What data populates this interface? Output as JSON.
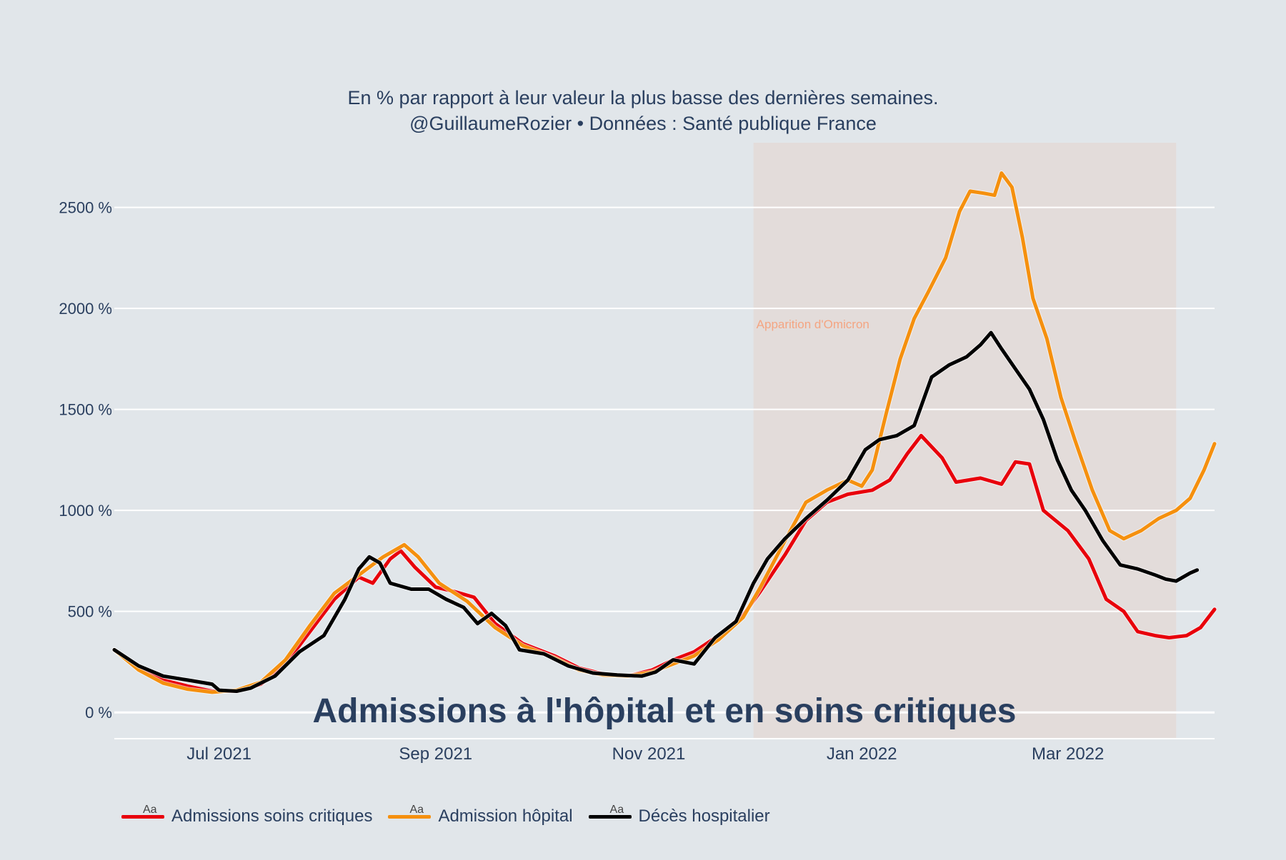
{
  "subtitle_line1": "En % par rapport à leur valeur la plus basse des dernières semaines.",
  "subtitle_line2": "@GuillaumeRozier • Données : Santé publique France",
  "chart_data": {
    "type": "line",
    "title": "Admissions à l'hôpital et en soins critiques",
    "xlabel": "",
    "ylabel": "",
    "x_range": [
      "2021-06-01",
      "2022-04-12"
    ],
    "ylim": [
      -130,
      2820
    ],
    "y_ticks": [
      0,
      500,
      1000,
      1500,
      2000,
      2500
    ],
    "y_tick_labels": [
      "0 %",
      "500 %",
      "1000 %",
      "1500 %",
      "2000 %",
      "2500 %"
    ],
    "x_ticks": [
      "2021-07-01",
      "2021-09-01",
      "2021-11-01",
      "2022-01-01",
      "2022-03-01"
    ],
    "x_tick_labels": [
      "Jul 2021",
      "Sep 2021",
      "Nov 2021",
      "Jan 2022",
      "Mar 2022"
    ],
    "grid": true,
    "legend_position": "bottom-left",
    "shaded_region": {
      "x0": "2021-12-01",
      "x1": "2022-04-01",
      "label": "Apparition d'Omicron",
      "color": "#f4a582",
      "label_color": "#f4a582"
    },
    "series": [
      {
        "name": "Admissions soins critiques",
        "color": "#e8000b",
        "points": [
          [
            "2021-06-01",
            310
          ],
          [
            "2021-06-08",
            220
          ],
          [
            "2021-06-15",
            160
          ],
          [
            "2021-06-22",
            130
          ],
          [
            "2021-06-29",
            105
          ],
          [
            "2021-07-06",
            105
          ],
          [
            "2021-07-13",
            140
          ],
          [
            "2021-07-20",
            240
          ],
          [
            "2021-07-27",
            400
          ],
          [
            "2021-08-03",
            560
          ],
          [
            "2021-08-10",
            670
          ],
          [
            "2021-08-14",
            640
          ],
          [
            "2021-08-19",
            760
          ],
          [
            "2021-08-22",
            800
          ],
          [
            "2021-08-26",
            720
          ],
          [
            "2021-09-01",
            620
          ],
          [
            "2021-09-06",
            600
          ],
          [
            "2021-09-12",
            570
          ],
          [
            "2021-09-18",
            440
          ],
          [
            "2021-09-26",
            340
          ],
          [
            "2021-10-05",
            280
          ],
          [
            "2021-10-12",
            220
          ],
          [
            "2021-10-19",
            190
          ],
          [
            "2021-10-26",
            180
          ],
          [
            "2021-11-02",
            210
          ],
          [
            "2021-11-08",
            260
          ],
          [
            "2021-11-14",
            300
          ],
          [
            "2021-11-21",
            380
          ],
          [
            "2021-11-28",
            480
          ],
          [
            "2021-12-03",
            600
          ],
          [
            "2021-12-10",
            780
          ],
          [
            "2021-12-16",
            950
          ],
          [
            "2021-12-22",
            1040
          ],
          [
            "2021-12-28",
            1080
          ],
          [
            "2022-01-04",
            1100
          ],
          [
            "2022-01-09",
            1150
          ],
          [
            "2022-01-14",
            1280
          ],
          [
            "2022-01-18",
            1370
          ],
          [
            "2022-01-24",
            1260
          ],
          [
            "2022-01-28",
            1140
          ],
          [
            "2022-02-04",
            1160
          ],
          [
            "2022-02-10",
            1130
          ],
          [
            "2022-02-14",
            1240
          ],
          [
            "2022-02-18",
            1230
          ],
          [
            "2022-02-22",
            1000
          ],
          [
            "2022-03-01",
            900
          ],
          [
            "2022-03-07",
            760
          ],
          [
            "2022-03-12",
            560
          ],
          [
            "2022-03-17",
            500
          ],
          [
            "2022-03-21",
            400
          ],
          [
            "2022-03-26",
            380
          ],
          [
            "2022-03-30",
            370
          ],
          [
            "2022-04-04",
            380
          ],
          [
            "2022-04-08",
            420
          ],
          [
            "2022-04-12",
            510
          ]
        ]
      },
      {
        "name": "Admission hôpital",
        "color": "#f5900e",
        "points": [
          [
            "2021-06-01",
            310
          ],
          [
            "2021-06-08",
            210
          ],
          [
            "2021-06-15",
            145
          ],
          [
            "2021-06-22",
            115
          ],
          [
            "2021-06-29",
            100
          ],
          [
            "2021-07-06",
            110
          ],
          [
            "2021-07-13",
            150
          ],
          [
            "2021-07-20",
            260
          ],
          [
            "2021-07-27",
            430
          ],
          [
            "2021-08-03",
            590
          ],
          [
            "2021-08-10",
            680
          ],
          [
            "2021-08-17",
            770
          ],
          [
            "2021-08-23",
            830
          ],
          [
            "2021-08-27",
            770
          ],
          [
            "2021-09-02",
            640
          ],
          [
            "2021-09-10",
            550
          ],
          [
            "2021-09-18",
            420
          ],
          [
            "2021-09-26",
            330
          ],
          [
            "2021-10-05",
            270
          ],
          [
            "2021-10-12",
            210
          ],
          [
            "2021-10-19",
            185
          ],
          [
            "2021-10-26",
            180
          ],
          [
            "2021-11-02",
            200
          ],
          [
            "2021-11-08",
            240
          ],
          [
            "2021-11-14",
            280
          ],
          [
            "2021-11-21",
            360
          ],
          [
            "2021-11-28",
            470
          ],
          [
            "2021-12-03",
            620
          ],
          [
            "2021-12-10",
            850
          ],
          [
            "2021-12-16",
            1040
          ],
          [
            "2021-12-22",
            1100
          ],
          [
            "2021-12-28",
            1150
          ],
          [
            "2022-01-01",
            1120
          ],
          [
            "2022-01-04",
            1200
          ],
          [
            "2022-01-08",
            1480
          ],
          [
            "2022-01-12",
            1750
          ],
          [
            "2022-01-16",
            1950
          ],
          [
            "2022-01-20",
            2080
          ],
          [
            "2022-01-25",
            2250
          ],
          [
            "2022-01-29",
            2480
          ],
          [
            "2022-02-01",
            2580
          ],
          [
            "2022-02-05",
            2570
          ],
          [
            "2022-02-08",
            2560
          ],
          [
            "2022-02-10",
            2670
          ],
          [
            "2022-02-13",
            2600
          ],
          [
            "2022-02-16",
            2350
          ],
          [
            "2022-02-19",
            2050
          ],
          [
            "2022-02-23",
            1850
          ],
          [
            "2022-02-27",
            1560
          ],
          [
            "2022-03-03",
            1350
          ],
          [
            "2022-03-08",
            1100
          ],
          [
            "2022-03-13",
            900
          ],
          [
            "2022-03-17",
            860
          ],
          [
            "2022-03-22",
            900
          ],
          [
            "2022-03-27",
            960
          ],
          [
            "2022-04-01",
            1000
          ],
          [
            "2022-04-05",
            1060
          ],
          [
            "2022-04-09",
            1200
          ],
          [
            "2022-04-12",
            1330
          ]
        ]
      },
      {
        "name": "Décès hospitalier",
        "color": "#000000",
        "points": [
          [
            "2021-06-01",
            310
          ],
          [
            "2021-06-08",
            230
          ],
          [
            "2021-06-15",
            180
          ],
          [
            "2021-06-22",
            160
          ],
          [
            "2021-06-29",
            140
          ],
          [
            "2021-07-01",
            110
          ],
          [
            "2021-07-06",
            105
          ],
          [
            "2021-07-10",
            120
          ],
          [
            "2021-07-17",
            180
          ],
          [
            "2021-07-24",
            300
          ],
          [
            "2021-07-31",
            380
          ],
          [
            "2021-08-06",
            560
          ],
          [
            "2021-08-10",
            710
          ],
          [
            "2021-08-13",
            770
          ],
          [
            "2021-08-16",
            740
          ],
          [
            "2021-08-19",
            640
          ],
          [
            "2021-08-25",
            610
          ],
          [
            "2021-08-30",
            610
          ],
          [
            "2021-09-04",
            560
          ],
          [
            "2021-09-09",
            520
          ],
          [
            "2021-09-13",
            440
          ],
          [
            "2021-09-17",
            490
          ],
          [
            "2021-09-21",
            430
          ],
          [
            "2021-09-25",
            310
          ],
          [
            "2021-10-02",
            290
          ],
          [
            "2021-10-09",
            230
          ],
          [
            "2021-10-16",
            195
          ],
          [
            "2021-10-23",
            185
          ],
          [
            "2021-10-30",
            180
          ],
          [
            "2021-11-03",
            200
          ],
          [
            "2021-11-08",
            260
          ],
          [
            "2021-11-14",
            240
          ],
          [
            "2021-11-20",
            370
          ],
          [
            "2021-11-26",
            450
          ],
          [
            "2021-12-01",
            640
          ],
          [
            "2021-12-05",
            760
          ],
          [
            "2021-12-10",
            860
          ],
          [
            "2021-12-16",
            960
          ],
          [
            "2021-12-22",
            1050
          ],
          [
            "2021-12-28",
            1150
          ],
          [
            "2022-01-02",
            1300
          ],
          [
            "2022-01-06",
            1350
          ],
          [
            "2022-01-11",
            1370
          ],
          [
            "2022-01-16",
            1420
          ],
          [
            "2022-01-21",
            1660
          ],
          [
            "2022-01-26",
            1720
          ],
          [
            "2022-01-31",
            1760
          ],
          [
            "2022-02-04",
            1820
          ],
          [
            "2022-02-07",
            1880
          ],
          [
            "2022-02-10",
            1800
          ],
          [
            "2022-02-14",
            1700
          ],
          [
            "2022-02-18",
            1600
          ],
          [
            "2022-02-22",
            1450
          ],
          [
            "2022-02-26",
            1250
          ],
          [
            "2022-03-02",
            1100
          ],
          [
            "2022-03-06",
            1000
          ],
          [
            "2022-03-11",
            850
          ],
          [
            "2022-03-16",
            730
          ],
          [
            "2022-03-21",
            710
          ],
          [
            "2022-03-26",
            680
          ],
          [
            "2022-03-29",
            660
          ],
          [
            "2022-04-01",
            650
          ],
          [
            "2022-04-05",
            690
          ],
          [
            "2022-04-07",
            705
          ]
        ]
      }
    ]
  }
}
